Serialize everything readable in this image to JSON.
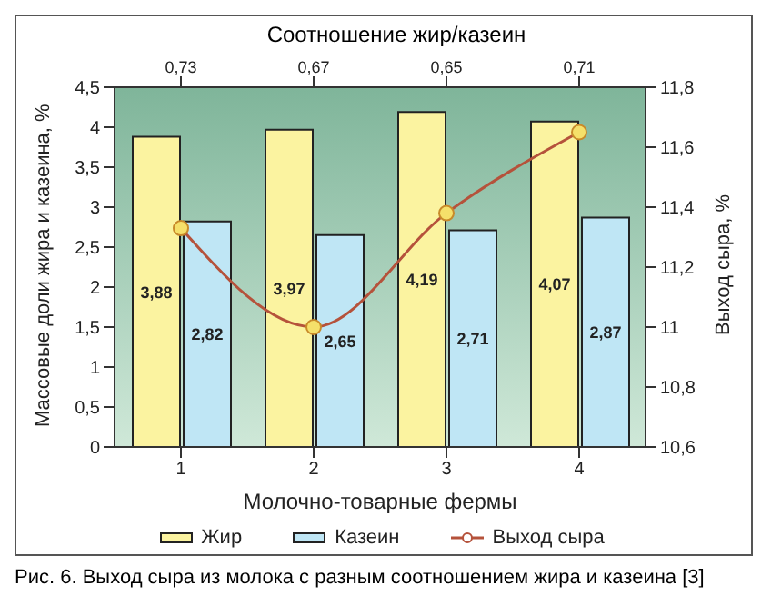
{
  "chart_data": {
    "type": "bar",
    "x2label": "Соотношение жир/казеин",
    "xlabel": "Молочно-товарные фермы",
    "ylabel": "Массовые доли жира и казеина, %",
    "y2label": "Выход сыра, %",
    "categories": [
      "1",
      "2",
      "3",
      "4"
    ],
    "series": [
      {
        "name": "Жир",
        "color": "#fbf3a0",
        "values": [
          3.88,
          3.97,
          4.19,
          4.07
        ],
        "value_labels": [
          "3,88",
          "3,97",
          "4,19",
          "4,07"
        ]
      },
      {
        "name": "Казеин",
        "color": "#bfe6f5",
        "values": [
          2.82,
          2.65,
          2.71,
          2.87
        ],
        "value_labels": [
          "2,82",
          "2,65",
          "2,71",
          "2,87"
        ]
      },
      {
        "name": "Выход сыра",
        "type": "line",
        "axis": "y2",
        "color": "#b5523b",
        "marker": "circle",
        "values": [
          11.33,
          11.0,
          11.38,
          11.65
        ]
      }
    ],
    "ylim": [
      0,
      4.5
    ],
    "yticks": [
      0,
      {
        "value": 0.5,
        "label": "0,5"
      },
      1,
      {
        "value": 1.5,
        "label": "1,5"
      },
      2,
      {
        "value": 2.5,
        "label": "2,5"
      },
      3,
      {
        "value": 3.5,
        "label": "3,5"
      },
      4,
      {
        "value": 4.5,
        "label": "4,5"
      }
    ],
    "y2lim": [
      10.6,
      11.8
    ],
    "y2ticks": [
      {
        "value": 10.6,
        "label": "10,6"
      },
      {
        "value": 10.8,
        "label": "10,8"
      },
      11,
      {
        "value": 11.2,
        "label": "11,2"
      },
      {
        "value": 11.4,
        "label": "11,4"
      },
      {
        "value": 11.6,
        "label": "11,6"
      },
      {
        "value": 11.8,
        "label": "11,8"
      }
    ],
    "annotations": [
      "0,73",
      "0,67",
      "0,65",
      "0,71",
      "Рис. 6. Выход сыра из молока с разным соотношением жира и казеина [3]"
    ],
    "legend": "bottom",
    "grid": false
  }
}
